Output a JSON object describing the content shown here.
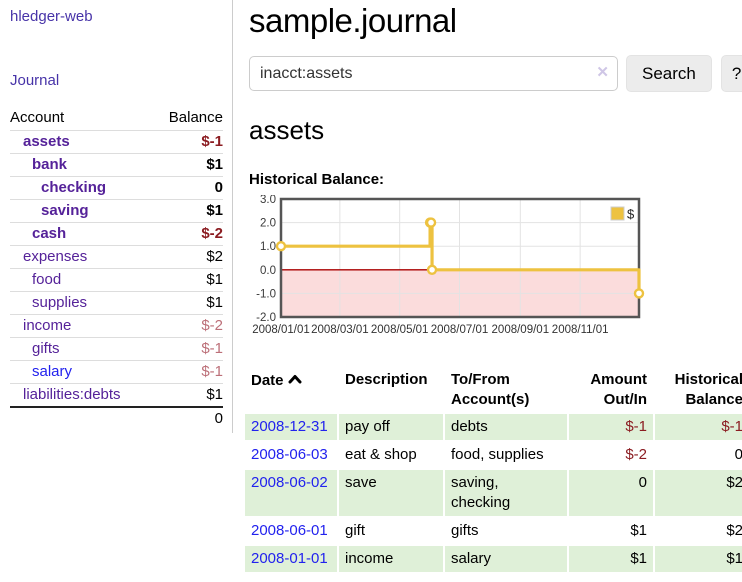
{
  "colors": {
    "brand_purple": "#4733a8",
    "account_purple": "#552299",
    "link_blue": "#2222ee",
    "neg_dark": "#8b1c21",
    "neg_rose": "#bc6f78",
    "stripe_green": "#dff0d8",
    "chart_gold": "#edc240",
    "chart_pink": "#fbdcdc",
    "chart_zero_red": "#aa0000",
    "chart_border": "#555555",
    "chart_grid": "#e3e3e3"
  },
  "sidebar": {
    "brand": "hledger-web",
    "journal": "Journal",
    "accounts": {
      "headers": [
        "Account",
        "Balance"
      ],
      "rows": [
        {
          "name": "assets",
          "depth": 0,
          "bold": true,
          "link_color": "purple",
          "balance": "$-1",
          "balance_color": "dark"
        },
        {
          "name": "bank",
          "depth": 1,
          "bold": true,
          "link_color": "purple",
          "balance": "$1",
          "balance_color": "default"
        },
        {
          "name": "checking",
          "depth": 2,
          "bold": true,
          "link_color": "purple",
          "balance": "0",
          "balance_color": "default"
        },
        {
          "name": "saving",
          "depth": 2,
          "bold": true,
          "link_color": "purple",
          "balance": "$1",
          "balance_color": "default"
        },
        {
          "name": "cash",
          "depth": 1,
          "bold": true,
          "link_color": "purple",
          "balance": "$-2",
          "balance_color": "dark"
        },
        {
          "name": "expenses",
          "depth": 0,
          "bold": false,
          "link_color": "purple",
          "balance": "$2",
          "balance_color": "default"
        },
        {
          "name": "food",
          "depth": 1,
          "bold": false,
          "link_color": "purple",
          "balance": "$1",
          "balance_color": "default"
        },
        {
          "name": "supplies",
          "depth": 1,
          "bold": false,
          "link_color": "purple",
          "balance": "$1",
          "balance_color": "default"
        },
        {
          "name": "income",
          "depth": 0,
          "bold": false,
          "link_color": "purple",
          "balance": "$-2",
          "balance_color": "rose"
        },
        {
          "name": "gifts",
          "depth": 1,
          "bold": false,
          "link_color": "purple",
          "balance": "$-1",
          "balance_color": "rose"
        },
        {
          "name": "salary",
          "depth": 1,
          "bold": false,
          "link_color": "blue",
          "balance": "$-1",
          "balance_color": "rose"
        },
        {
          "name": "liabilities:debts",
          "depth": 0,
          "bold": false,
          "link_color": "purple",
          "balance": "$1",
          "balance_color": "default"
        }
      ],
      "total": "0"
    }
  },
  "header": {
    "title": "sample.journal"
  },
  "search": {
    "value": "inacct:assets",
    "clear_icon": "✕",
    "button": "Search",
    "help_button": "?"
  },
  "account_page": {
    "heading": "assets",
    "chart_label": "Historical Balance:"
  },
  "chart_data": {
    "type": "line",
    "step": true,
    "title": "Historical Balance:",
    "legend": "$",
    "legend_position": "top-right",
    "grid": true,
    "ylim": [
      -2,
      3
    ],
    "yticks": [
      3.0,
      2.0,
      1.0,
      0.0,
      -1.0,
      -2.0
    ],
    "ytick_labels": [
      "3.0",
      "2.0",
      "1.0",
      "0.0",
      "-1.0",
      "-2.0"
    ],
    "xtick_labels": [
      "2008/01/01",
      "2008/03/01",
      "2008/05/01",
      "2008/07/01",
      "2008/09/01",
      "2008/11/01"
    ],
    "xtick_days": [
      0,
      60,
      121,
      182,
      244,
      305
    ],
    "x_range_days": [
      0,
      365
    ],
    "series": [
      {
        "name": "$",
        "points": [
          {
            "date": "2008-01-01",
            "day": 0,
            "value": 1
          },
          {
            "date": "2008-06-01",
            "day": 152,
            "value": 2
          },
          {
            "date": "2008-06-02",
            "day": 153,
            "value": 2
          },
          {
            "date": "2008-06-03",
            "day": 154,
            "value": 0
          },
          {
            "date": "2008-12-31",
            "day": 365,
            "value": -1
          }
        ]
      }
    ]
  },
  "register": {
    "headers": {
      "date": "Date",
      "description": "Description",
      "accounts": "To/From Account(s)",
      "amount": "Amount Out/In",
      "balance": "Historical Balance"
    },
    "rows": [
      {
        "date": "2008-12-31",
        "description": "pay off",
        "accounts": "debts",
        "amount": "$-1",
        "amount_neg": true,
        "balance": "$-1",
        "balance_neg": true,
        "shade": true
      },
      {
        "date": "2008-06-03",
        "description": "eat & shop",
        "accounts": "food, supplies",
        "amount": "$-2",
        "amount_neg": true,
        "balance": "0",
        "balance_neg": false,
        "shade": false
      },
      {
        "date": "2008-06-02",
        "description": "save",
        "accounts": "saving, checking",
        "amount": "0",
        "amount_neg": false,
        "balance": "$2",
        "balance_neg": false,
        "shade": true
      },
      {
        "date": "2008-06-01",
        "description": "gift",
        "accounts": "gifts",
        "amount": "$1",
        "amount_neg": false,
        "balance": "$2",
        "balance_neg": false,
        "shade": false
      },
      {
        "date": "2008-01-01",
        "description": "income",
        "accounts": "salary",
        "amount": "$1",
        "amount_neg": false,
        "balance": "$1",
        "balance_neg": false,
        "shade": true
      }
    ]
  }
}
